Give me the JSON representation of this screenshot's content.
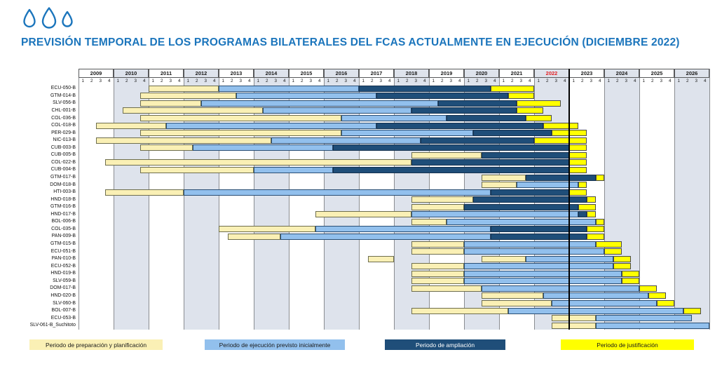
{
  "header": {
    "title": "PREVISIÓN TEMPORAL DE LOS PROGRAMAS BILATERALES DEL FCAS ACTUALMENTE EN EJECUCIÓN (DICIEMBRE 2022)",
    "logo_icon": "three-water-drops",
    "title_color": "#1b75bc"
  },
  "chart_data": {
    "type": "gantt",
    "x_axis": {
      "years": [
        "2009",
        "2010",
        "2011",
        "2012",
        "2013",
        "2014",
        "2015",
        "2016",
        "2017",
        "2018",
        "2019",
        "2020",
        "2021",
        "2022",
        "2023",
        "2024",
        "2025",
        "2026"
      ],
      "quarter_labels": [
        "1",
        "2",
        "3",
        "4"
      ],
      "highlighted_year": "2022",
      "highlighted_year_color": "#e32226"
    },
    "current_date_line": {
      "after": "2022Q4",
      "color": "#000000"
    },
    "colors": {
      "prep": "#faf0b5",
      "exec": "#92c0ed",
      "amp": "#1f4e79",
      "just": "#ffff00",
      "col_shade": "#dee3ec",
      "col_white": "#ffffff"
    },
    "legend": [
      {
        "key": "prep",
        "label": "Periodo de preparación y planificación",
        "color": "#faf0b5",
        "text_color": "#1a1a1a"
      },
      {
        "key": "exec",
        "label": "Periodo de ejecución previsto inicialmente",
        "color": "#92c0ed",
        "text_color": "#1a1a1a"
      },
      {
        "key": "amp",
        "label": "Periodo de ampliación",
        "color": "#1f4e79",
        "text_color": "#ffffff"
      },
      {
        "key": "just",
        "label": "Periodo de justificación",
        "color": "#ffff00",
        "text_color": "#1a1a1a"
      }
    ],
    "rows": [
      {
        "label": "ECU-050-B",
        "segments": [
          {
            "type": "prep",
            "start": "2011Q1",
            "end": "2012Q4"
          },
          {
            "type": "exec",
            "start": "2013Q1",
            "end": "2016Q4"
          },
          {
            "type": "amp",
            "start": "2017Q1",
            "end": "2020Q3"
          },
          {
            "type": "just",
            "start": "2020Q4",
            "end": "2021Q4"
          }
        ]
      },
      {
        "label": "GTM-014-B",
        "segments": [
          {
            "type": "prep",
            "start": "2010Q4",
            "end": "2013Q2"
          },
          {
            "type": "exec",
            "start": "2013Q3",
            "end": "2017Q2"
          },
          {
            "type": "amp",
            "start": "2017Q3",
            "end": "2021Q1"
          },
          {
            "type": "just",
            "start": "2021Q2",
            "end": "2021Q4"
          }
        ]
      },
      {
        "label": "SLV-056-B",
        "segments": [
          {
            "type": "prep",
            "start": "2010Q4",
            "end": "2012Q2"
          },
          {
            "type": "exec",
            "start": "2012Q3",
            "end": "2019Q1"
          },
          {
            "type": "amp",
            "start": "2019Q2",
            "end": "2021Q2"
          },
          {
            "type": "just",
            "start": "2021Q3",
            "end": "2022Q3"
          }
        ]
      },
      {
        "label": "CHL-001-B",
        "segments": [
          {
            "type": "prep",
            "start": "2010Q2",
            "end": "2014Q1"
          },
          {
            "type": "exec",
            "start": "2014Q2",
            "end": "2018Q2"
          },
          {
            "type": "amp",
            "start": "2018Q3",
            "end": "2021Q2"
          },
          {
            "type": "just",
            "start": "2021Q3",
            "end": "2022Q1"
          }
        ]
      },
      {
        "label": "COL-036-B",
        "segments": [
          {
            "type": "prep",
            "start": "2010Q4",
            "end": "2016Q2"
          },
          {
            "type": "exec",
            "start": "2016Q3",
            "end": "2019Q2"
          },
          {
            "type": "amp",
            "start": "2019Q3",
            "end": "2021Q3"
          },
          {
            "type": "just",
            "start": "2021Q4",
            "end": "2022Q2"
          }
        ]
      },
      {
        "label": "COL-018-B",
        "segments": [
          {
            "type": "prep",
            "start": "2009Q3",
            "end": "2011Q2"
          },
          {
            "type": "exec",
            "start": "2011Q3",
            "end": "2017Q2"
          },
          {
            "type": "amp",
            "start": "2017Q3",
            "end": "2022Q1"
          },
          {
            "type": "just",
            "start": "2022Q2",
            "end": "2023Q1"
          }
        ]
      },
      {
        "label": "PER-029-B",
        "segments": [
          {
            "type": "prep",
            "start": "2010Q4",
            "end": "2016Q2"
          },
          {
            "type": "exec",
            "start": "2016Q3",
            "end": "2020Q1"
          },
          {
            "type": "amp",
            "start": "2020Q2",
            "end": "2022Q2"
          },
          {
            "type": "just",
            "start": "2022Q3",
            "end": "2023Q2"
          }
        ]
      },
      {
        "label": "NIC-013-B",
        "segments": [
          {
            "type": "prep",
            "start": "2009Q3",
            "end": "2014Q2"
          },
          {
            "type": "exec",
            "start": "2014Q3",
            "end": "2018Q3"
          },
          {
            "type": "amp",
            "start": "2018Q4",
            "end": "2021Q4"
          },
          {
            "type": "just",
            "start": "2022Q1",
            "end": "2023Q2"
          }
        ]
      },
      {
        "label": "CUB-003-B",
        "segments": [
          {
            "type": "prep",
            "start": "2010Q4",
            "end": "2012Q1"
          },
          {
            "type": "exec",
            "start": "2012Q2",
            "end": "2016Q1"
          },
          {
            "type": "amp",
            "start": "2016Q2",
            "end": "2022Q4"
          },
          {
            "type": "just",
            "start": "2023Q1",
            "end": "2023Q2"
          }
        ]
      },
      {
        "label": "CUB-005-B",
        "segments": [
          {
            "type": "prep",
            "start": "2018Q3",
            "end": "2020Q2"
          },
          {
            "type": "amp",
            "start": "2020Q3",
            "end": "2022Q4"
          },
          {
            "type": "just",
            "start": "2023Q1",
            "end": "2023Q2"
          }
        ]
      },
      {
        "label": "COL-022-B",
        "segments": [
          {
            "type": "prep",
            "start": "2009Q4",
            "end": "2018Q2"
          },
          {
            "type": "amp",
            "start": "2018Q3",
            "end": "2022Q4"
          },
          {
            "type": "just",
            "start": "2023Q1",
            "end": "2023Q2"
          }
        ]
      },
      {
        "label": "CUB-004-B",
        "segments": [
          {
            "type": "prep",
            "start": "2010Q4",
            "end": "2013Q4"
          },
          {
            "type": "exec",
            "start": "2014Q1",
            "end": "2016Q1"
          },
          {
            "type": "amp",
            "start": "2016Q2",
            "end": "2022Q4"
          },
          {
            "type": "just",
            "start": "2023Q1",
            "end": "2023Q2"
          }
        ]
      },
      {
        "label": "GTM-017-B",
        "segments": [
          {
            "type": "prep",
            "start": "2020Q3",
            "end": "2021Q3"
          },
          {
            "type": "amp",
            "start": "2021Q4",
            "end": "2023Q3"
          },
          {
            "type": "just",
            "start": "2023Q4",
            "end": "2023Q4"
          }
        ]
      },
      {
        "label": "DOM-018-B",
        "segments": [
          {
            "type": "prep",
            "start": "2020Q3",
            "end": "2021Q2"
          },
          {
            "type": "exec",
            "start": "2021Q3",
            "end": "2023Q1"
          },
          {
            "type": "just",
            "start": "2023Q2",
            "end": "2023Q2"
          }
        ]
      },
      {
        "label": "HTI-003-B",
        "segments": [
          {
            "type": "prep",
            "start": "2009Q4",
            "end": "2011Q4"
          },
          {
            "type": "exec",
            "start": "2012Q1",
            "end": "2020Q3"
          },
          {
            "type": "amp",
            "start": "2020Q4",
            "end": "2022Q4"
          },
          {
            "type": "just",
            "start": "2023Q1",
            "end": "2023Q2"
          }
        ]
      },
      {
        "label": "HND-018-B",
        "segments": [
          {
            "type": "prep",
            "start": "2018Q3",
            "end": "2020Q1"
          },
          {
            "type": "amp",
            "start": "2020Q2",
            "end": "2023Q2"
          },
          {
            "type": "just",
            "start": "2023Q3",
            "end": "2023Q3"
          }
        ]
      },
      {
        "label": "GTM-016-B",
        "segments": [
          {
            "type": "prep",
            "start": "2018Q3",
            "end": "2019Q4"
          },
          {
            "type": "amp",
            "start": "2020Q1",
            "end": "2023Q1"
          },
          {
            "type": "just",
            "start": "2023Q2",
            "end": "2023Q3"
          }
        ]
      },
      {
        "label": "HND-017-B",
        "segments": [
          {
            "type": "prep",
            "start": "2015Q4",
            "end": "2018Q2"
          },
          {
            "type": "exec",
            "start": "2018Q3",
            "end": "2023Q1"
          },
          {
            "type": "amp",
            "start": "2023Q2",
            "end": "2023Q2"
          },
          {
            "type": "just",
            "start": "2023Q3",
            "end": "2023Q3"
          }
        ]
      },
      {
        "label": "BOL-006-B",
        "segments": [
          {
            "type": "prep",
            "start": "2018Q3",
            "end": "2019Q2"
          },
          {
            "type": "exec",
            "start": "2019Q3",
            "end": "2023Q3"
          },
          {
            "type": "just",
            "start": "2023Q4",
            "end": "2023Q4"
          }
        ]
      },
      {
        "label": "COL-035-B",
        "segments": [
          {
            "type": "prep",
            "start": "2013Q1",
            "end": "2015Q3"
          },
          {
            "type": "exec",
            "start": "2015Q4",
            "end": "2020Q3"
          },
          {
            "type": "amp",
            "start": "2020Q4",
            "end": "2023Q2"
          },
          {
            "type": "just",
            "start": "2023Q3",
            "end": "2023Q4"
          }
        ]
      },
      {
        "label": "PAN-009-B",
        "segments": [
          {
            "type": "prep",
            "start": "2013Q2",
            "end": "2014Q3"
          },
          {
            "type": "exec",
            "start": "2014Q4",
            "end": "2020Q3"
          },
          {
            "type": "amp",
            "start": "2020Q4",
            "end": "2023Q2"
          },
          {
            "type": "just",
            "start": "2023Q3",
            "end": "2023Q4"
          }
        ]
      },
      {
        "label": "GTM-015-B",
        "segments": [
          {
            "type": "prep",
            "start": "2018Q3",
            "end": "2019Q4"
          },
          {
            "type": "exec",
            "start": "2020Q1",
            "end": "2023Q3"
          },
          {
            "type": "just",
            "start": "2023Q4",
            "end": "2024Q2"
          }
        ]
      },
      {
        "label": "ECU-051-B",
        "segments": [
          {
            "type": "prep",
            "start": "2018Q3",
            "end": "2019Q4"
          },
          {
            "type": "exec",
            "start": "2020Q1",
            "end": "2023Q4"
          },
          {
            "type": "just",
            "start": "2024Q1",
            "end": "2024Q2"
          }
        ]
      },
      {
        "label": "PAN-010-B",
        "segments": [
          {
            "type": "prep",
            "start": "2017Q2",
            "end": "2017Q4"
          },
          {
            "type": "prep",
            "start": "2020Q3",
            "end": "2021Q3"
          },
          {
            "type": "exec",
            "start": "2021Q4",
            "end": "2024Q1"
          },
          {
            "type": "just",
            "start": "2024Q2",
            "end": "2024Q3"
          }
        ]
      },
      {
        "label": "ECU-052-B",
        "segments": [
          {
            "type": "prep",
            "start": "2018Q3",
            "end": "2019Q4"
          },
          {
            "type": "exec",
            "start": "2020Q1",
            "end": "2024Q1"
          },
          {
            "type": "just",
            "start": "2024Q2",
            "end": "2024Q3"
          }
        ]
      },
      {
        "label": "HND-019-B",
        "segments": [
          {
            "type": "prep",
            "start": "2018Q3",
            "end": "2019Q4"
          },
          {
            "type": "exec",
            "start": "2020Q1",
            "end": "2024Q2"
          },
          {
            "type": "just",
            "start": "2024Q3",
            "end": "2024Q4"
          }
        ]
      },
      {
        "label": "SLV-059-B",
        "segments": [
          {
            "type": "prep",
            "start": "2018Q3",
            "end": "2019Q4"
          },
          {
            "type": "exec",
            "start": "2020Q1",
            "end": "2024Q2"
          },
          {
            "type": "just",
            "start": "2024Q3",
            "end": "2024Q4"
          }
        ]
      },
      {
        "label": "DOM-017-B",
        "segments": [
          {
            "type": "prep",
            "start": "2018Q3",
            "end": "2020Q2"
          },
          {
            "type": "exec",
            "start": "2020Q3",
            "end": "2024Q4"
          },
          {
            "type": "just",
            "start": "2025Q1",
            "end": "2025Q2"
          }
        ]
      },
      {
        "label": "HND-020-B",
        "segments": [
          {
            "type": "prep",
            "start": "2020Q3",
            "end": "2022Q1"
          },
          {
            "type": "exec",
            "start": "2022Q2",
            "end": "2025Q1"
          },
          {
            "type": "just",
            "start": "2025Q2",
            "end": "2025Q3"
          }
        ]
      },
      {
        "label": "SLV-060-B",
        "segments": [
          {
            "type": "prep",
            "start": "2020Q3",
            "end": "2022Q2"
          },
          {
            "type": "exec",
            "start": "2022Q3",
            "end": "2025Q2"
          },
          {
            "type": "just",
            "start": "2025Q3",
            "end": "2025Q4"
          }
        ]
      },
      {
        "label": "BOL-007-B",
        "segments": [
          {
            "type": "prep",
            "start": "2018Q3",
            "end": "2021Q1"
          },
          {
            "type": "exec",
            "start": "2021Q2",
            "end": "2026Q1"
          },
          {
            "type": "just",
            "start": "2026Q2",
            "end": "2026Q3"
          }
        ]
      },
      {
        "label": "ECU-053-B",
        "segments": [
          {
            "type": "prep",
            "start": "2022Q3",
            "end": "2023Q3"
          },
          {
            "type": "exec",
            "start": "2023Q4",
            "end": "2026Q2"
          }
        ]
      },
      {
        "label": "SLV-061-B_Suchitoto",
        "segments": [
          {
            "type": "prep",
            "start": "2022Q3",
            "end": "2023Q3"
          },
          {
            "type": "exec",
            "start": "2023Q4",
            "end": "2026Q4"
          }
        ]
      }
    ]
  }
}
